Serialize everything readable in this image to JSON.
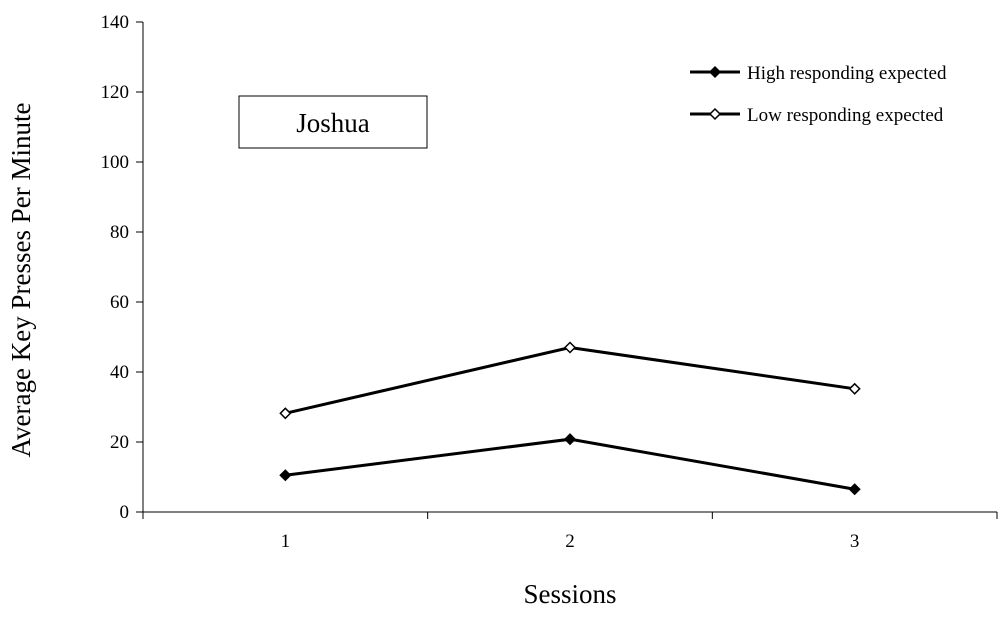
{
  "chart_data": {
    "type": "line",
    "title": "",
    "xlabel": "Sessions",
    "ylabel": "Average Key Presses Per Minute",
    "categories": [
      "1",
      "2",
      "3"
    ],
    "x": [
      1,
      2,
      3
    ],
    "xlim": [
      0.5,
      3.5
    ],
    "ylim": [
      0,
      140
    ],
    "yticks": [
      0,
      20,
      40,
      60,
      80,
      100,
      120,
      140
    ],
    "grid": false,
    "legend_position": "top-right",
    "annotation": "Joshua",
    "series": [
      {
        "name": "High responding expected",
        "marker": "filled-diamond",
        "color": "#000000",
        "values": [
          10.5,
          20.8,
          6.5
        ]
      },
      {
        "name": "Low responding expected",
        "marker": "open-diamond",
        "color": "#000000",
        "values": [
          28.2,
          47.0,
          35.2
        ]
      }
    ]
  }
}
